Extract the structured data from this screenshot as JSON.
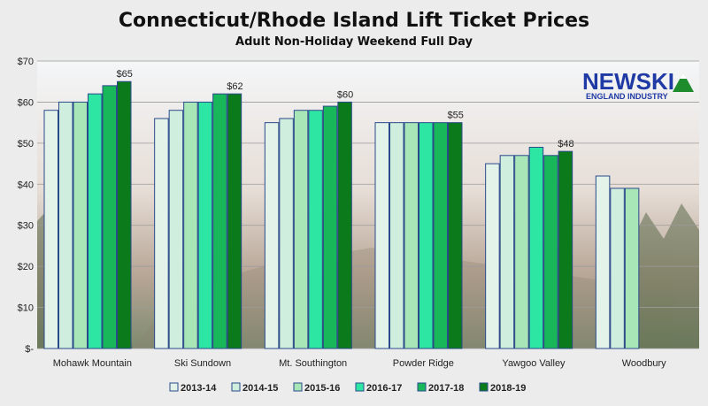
{
  "chart_data": {
    "type": "bar",
    "title": "Connecticut/Rhode Island Lift Ticket Prices",
    "subtitle": "Adult Non-Holiday Weekend Full Day",
    "categories": [
      "Mohawk Mountain",
      "Ski Sundown",
      "Mt. Southington",
      "Powder Ridge",
      "Yawgoo Valley",
      "Woodbury"
    ],
    "ylim": [
      0,
      70
    ],
    "yticks": [
      "$-",
      "$10",
      "$20",
      "$30",
      "$40",
      "$50",
      "$60",
      "$70"
    ],
    "grid": true,
    "legend_position": "bottom",
    "series": [
      {
        "name": "2013-14",
        "color": "#e4f3ea",
        "values": [
          58,
          56,
          55,
          55,
          45,
          42
        ]
      },
      {
        "name": "2014-15",
        "color": "#cfeedd",
        "values": [
          60,
          58,
          56,
          55,
          47,
          39
        ]
      },
      {
        "name": "2015-16",
        "color": "#a8e6b8",
        "values": [
          60,
          60,
          58,
          55,
          47,
          39
        ]
      },
      {
        "name": "2016-17",
        "color": "#2ee6a3",
        "values": [
          62,
          60,
          58,
          55,
          49,
          null
        ]
      },
      {
        "name": "2017-18",
        "color": "#18b85a",
        "values": [
          64,
          62,
          59,
          55,
          47,
          null
        ]
      },
      {
        "name": "2018-19",
        "color": "#0a7a1a",
        "values": [
          65,
          62,
          60,
          55,
          48,
          null
        ]
      }
    ],
    "annotations": [
      "$65",
      "$62",
      "$60",
      "$55",
      "$48"
    ]
  },
  "logo": {
    "line1": "NEWSKI",
    "line2": "ENGLAND INDUSTRY"
  }
}
